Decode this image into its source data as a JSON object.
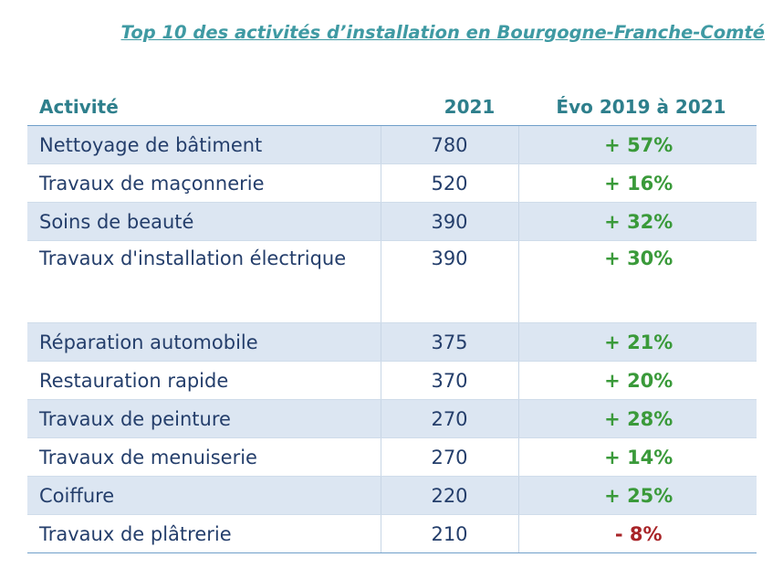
{
  "title": "Top 10 des activités d’installation en Bourgogne-Franche-Comté",
  "colors": {
    "title": "#3f9aa3",
    "header": "#2e7f8c",
    "text": "#243e6b",
    "row_shade": "#dce6f2",
    "positive": "#3a9a3a",
    "negative": "#a82428"
  },
  "table": {
    "headers": [
      "Activité",
      "2021",
      "Évo 2019 à 2021"
    ],
    "rows": [
      {
        "activite": "Nettoyage de bâtiment",
        "n2021": "780",
        "evo": "+ 57%",
        "sign": "pos"
      },
      {
        "activite": "Travaux de maçonnerie",
        "n2021": "520",
        "evo": "+ 16%",
        "sign": "pos"
      },
      {
        "activite": "Soins de beauté",
        "n2021": "390",
        "evo": "+ 32%",
        "sign": "pos"
      },
      {
        "activite": "Travaux d'installation électrique",
        "n2021": "390",
        "evo": "+ 30%",
        "sign": "pos"
      },
      {
        "activite": "Réparation automobile",
        "n2021": "375",
        "evo": "+ 21%",
        "sign": "pos"
      },
      {
        "activite": "Restauration rapide",
        "n2021": "370",
        "evo": "+ 20%",
        "sign": "pos"
      },
      {
        "activite": "Travaux de peinture",
        "n2021": "270",
        "evo": "+ 28%",
        "sign": "pos"
      },
      {
        "activite": "Travaux de menuiserie",
        "n2021": "270",
        "evo": "+ 14%",
        "sign": "pos"
      },
      {
        "activite": "Coiffure",
        "n2021": "220",
        "evo": "+ 25%",
        "sign": "pos"
      },
      {
        "activite": "Travaux de plâtrerie",
        "n2021": "210",
        "evo": "- 8%",
        "sign": "neg"
      }
    ]
  }
}
